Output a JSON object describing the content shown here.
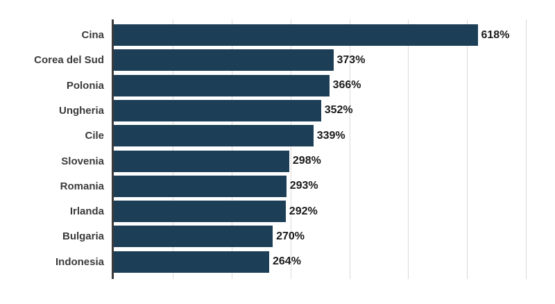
{
  "chart_data": {
    "type": "bar",
    "orientation": "horizontal",
    "title": "",
    "xlabel": "",
    "ylabel": "",
    "categories": [
      "Cina",
      "Corea del Sud",
      "Polonia",
      "Ungheria",
      "Cile",
      "Slovenia",
      "Romania",
      "Irlanda",
      "Bulgaria",
      "Indonesia"
    ],
    "values": [
      618,
      373,
      366,
      352,
      339,
      298,
      293,
      292,
      270,
      264
    ],
    "value_labels": [
      "618%",
      "373%",
      "366%",
      "352%",
      "339%",
      "298%",
      "293%",
      "292%",
      "270%",
      "264%"
    ],
    "xlim": [
      0,
      740
    ],
    "gridlines": [
      100,
      200,
      300,
      400,
      500,
      600,
      700
    ],
    "grid": "vertical-only",
    "legend": "none",
    "colors": {
      "bar": "#1c3e56",
      "axis_line": "#3c3c3c",
      "gridline": "#d9d9d9",
      "category_label": "#3a3a3a",
      "value_label": "#1a1a1a",
      "background": "#ffffff"
    }
  }
}
